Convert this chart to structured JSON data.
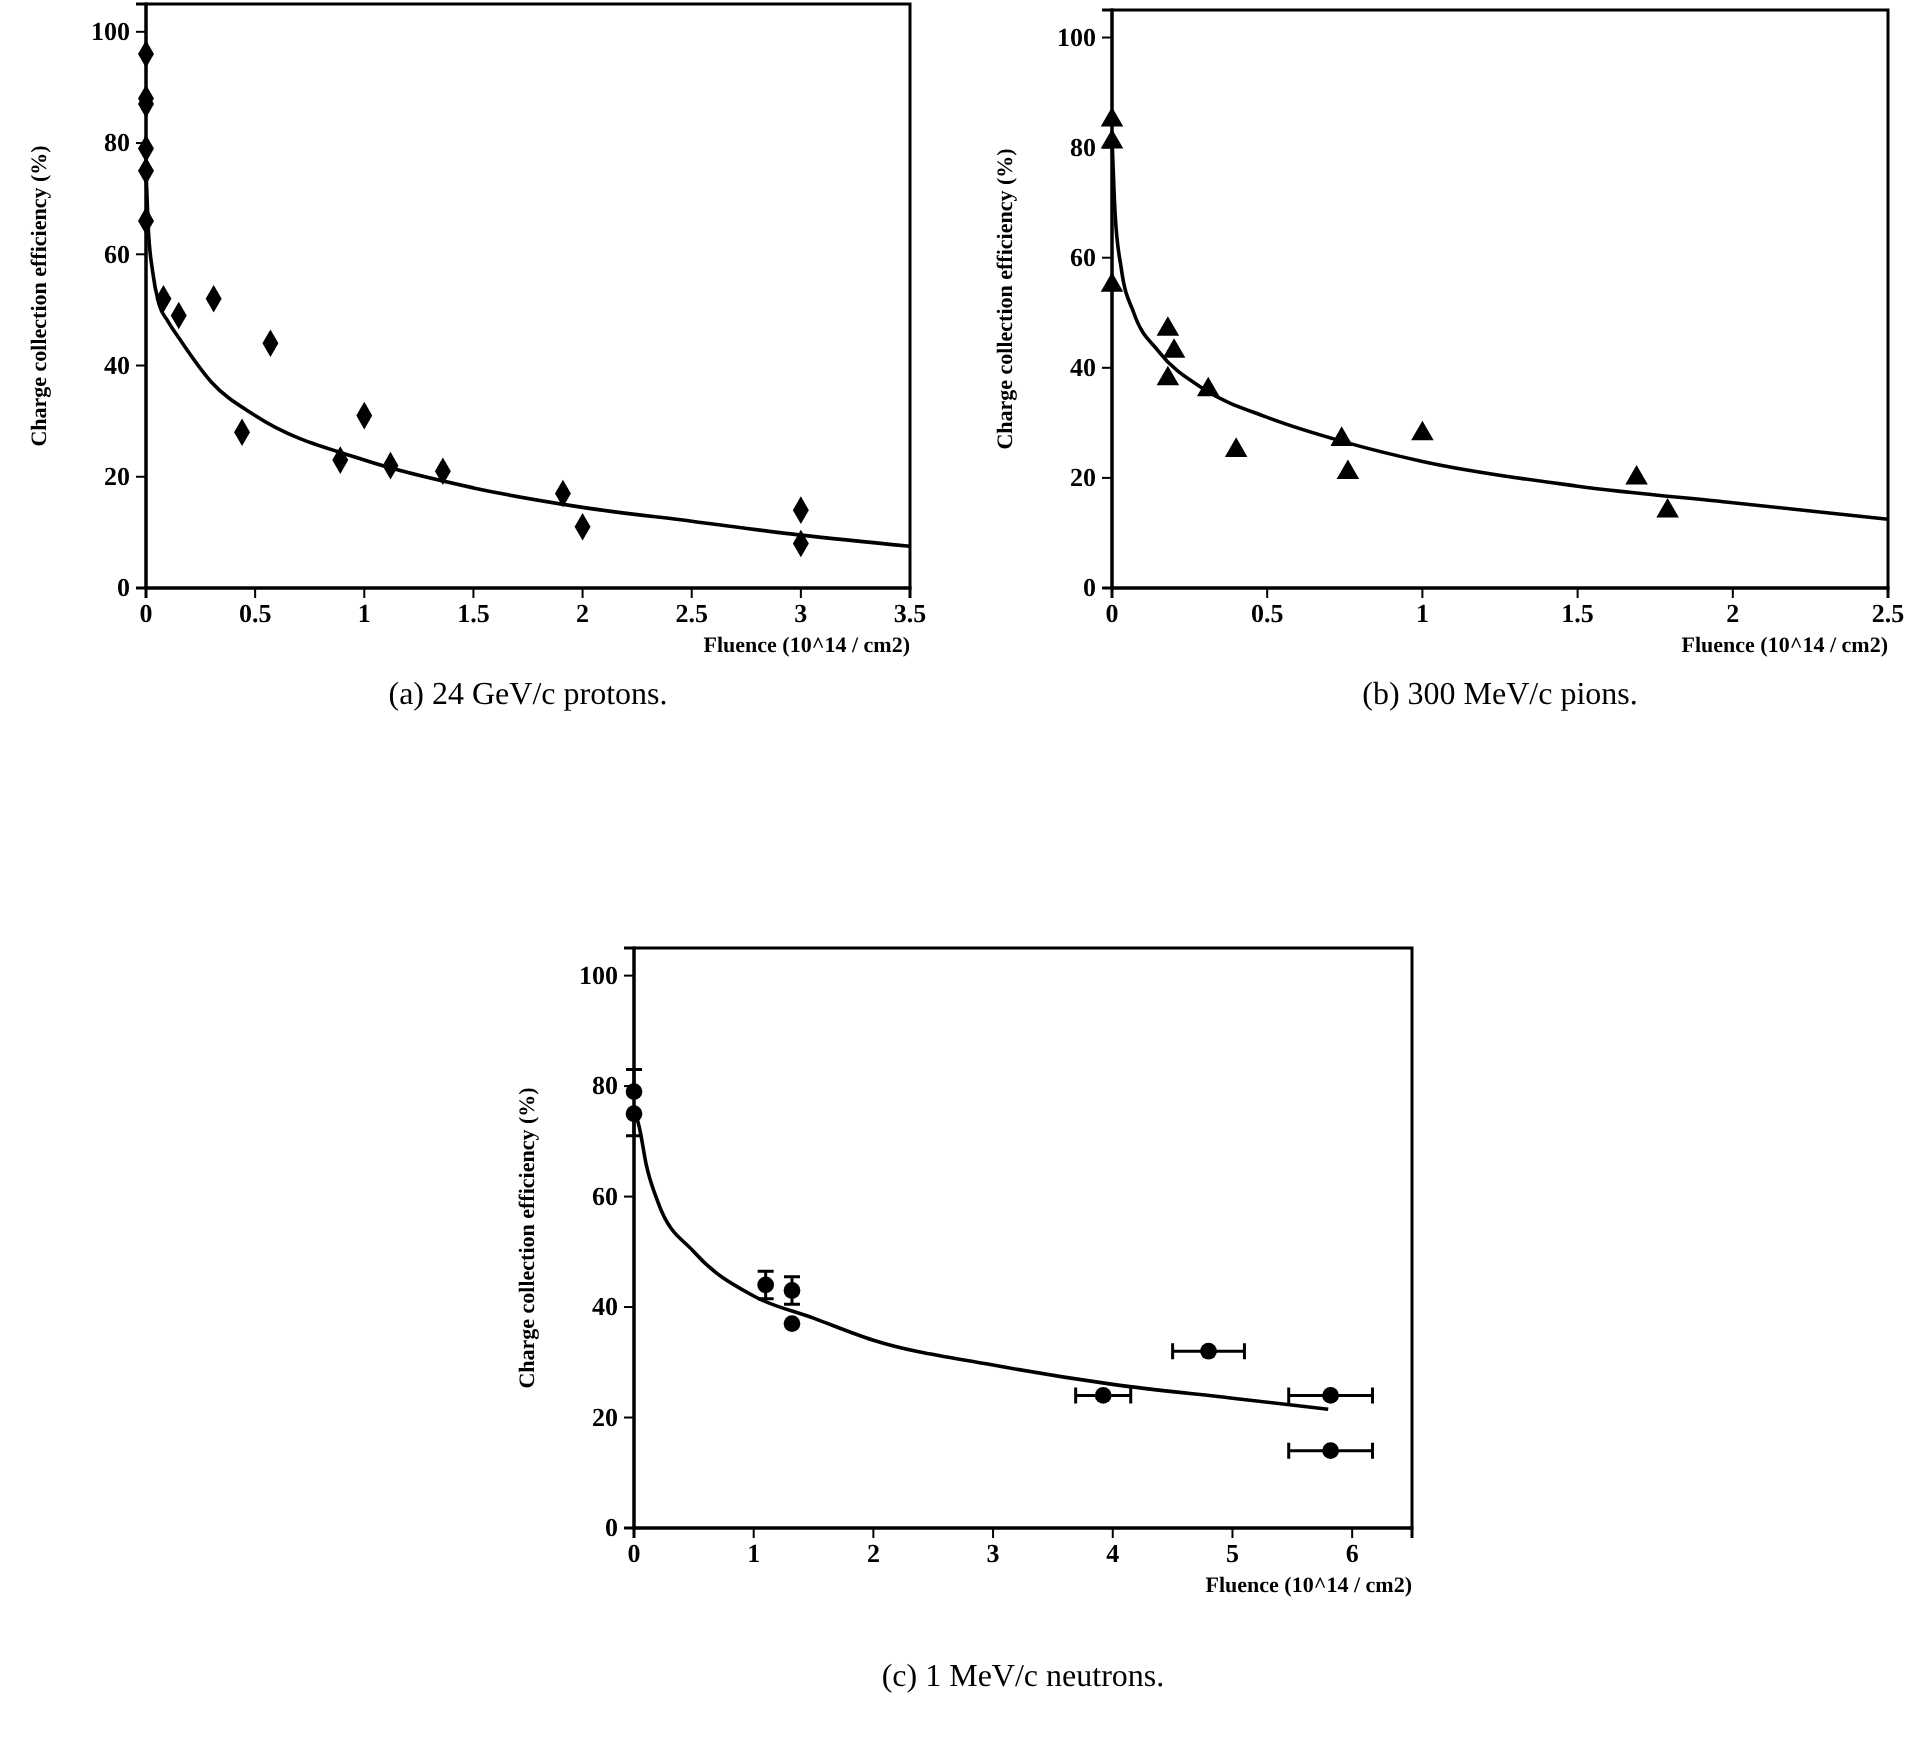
{
  "chart_data": [
    {
      "type": "scatter",
      "xlabel": "Fluence (10^14 / cm2)",
      "ylabel": "Charge collection efficiency (%)",
      "annotations": [
        "(a) 24 GeV/c protons."
      ],
      "xlim": [
        0,
        3.5
      ],
      "ylim": [
        0,
        105
      ],
      "xticks": [
        0,
        0.5,
        1,
        1.5,
        2,
        2.5,
        3,
        3.5
      ],
      "yticks": [
        0,
        20,
        40,
        60,
        80,
        100
      ],
      "grid": false,
      "series": [
        {
          "marker": "diamond",
          "color": "#000000",
          "x": [
            0,
            0,
            0,
            0,
            0,
            0,
            0.08,
            0.15,
            0.31,
            0.44,
            0.57,
            0.89,
            1.0,
            1.12,
            1.36,
            1.91,
            2.0,
            3.0,
            3.0
          ],
          "values": [
            96,
            88,
            87,
            79,
            75,
            66,
            52,
            49,
            52,
            28,
            44,
            23,
            31,
            22,
            21,
            17,
            11,
            14,
            8
          ]
        },
        {
          "type": "line",
          "marker": "none",
          "color": "#000000",
          "x": [
            0,
            0.01,
            0.03,
            0.06,
            0.1,
            0.15,
            0.3,
            0.5,
            1,
            1.5,
            2,
            2.5,
            3,
            3.5
          ],
          "values": [
            75,
            65,
            57,
            51,
            48,
            45,
            37,
            31,
            23,
            18,
            14.5,
            12,
            9.5,
            7.5
          ]
        }
      ]
    },
    {
      "type": "scatter",
      "xlabel": "Fluence (10^14 / cm2)",
      "ylabel": "Charge collection efficiency (%)",
      "annotations": [
        "(b) 300 MeV/c pions."
      ],
      "xlim": [
        0,
        2.5
      ],
      "ylim": [
        0,
        105
      ],
      "xticks": [
        0,
        0.5,
        1,
        1.5,
        2,
        2.5
      ],
      "yticks": [
        0,
        20,
        40,
        60,
        80,
        100
      ],
      "grid": false,
      "series": [
        {
          "marker": "triangle",
          "color": "#000000",
          "x": [
            0,
            0,
            0,
            0.18,
            0.2,
            0.18,
            0.31,
            0.4,
            0.74,
            0.76,
            1.0,
            1.69,
            1.79
          ],
          "values": [
            85,
            81,
            55,
            47,
            43,
            38,
            36,
            25,
            27,
            21,
            28,
            20,
            14
          ]
        },
        {
          "type": "line",
          "marker": "none",
          "color": "#000000",
          "x": [
            0,
            0.01,
            0.03,
            0.07,
            0.15,
            0.3,
            0.5,
            0.75,
            1,
            1.5,
            2,
            2.5
          ],
          "values": [
            82,
            68,
            58,
            50,
            43,
            36,
            31,
            26.5,
            23,
            18.5,
            15.5,
            12.5
          ]
        }
      ]
    },
    {
      "type": "scatter",
      "xlabel": "Fluence (10^14 / cm2)",
      "ylabel": "Charge collection efficiency (%)",
      "annotations": [
        "(c) 1 MeV/c neutrons."
      ],
      "xlim": [
        0,
        6.5
      ],
      "ylim": [
        0,
        105
      ],
      "xticks": [
        0,
        1,
        2,
        3,
        4,
        5,
        6
      ],
      "yticks": [
        0,
        20,
        40,
        60,
        80,
        100
      ],
      "grid": false,
      "series": [
        {
          "marker": "circle",
          "color": "#000000",
          "x": [
            0,
            0,
            1.1,
            1.32,
            1.32,
            3.92,
            4.8,
            5.82,
            5.82
          ],
          "values": [
            79,
            75,
            44,
            43,
            37,
            24,
            32,
            24,
            14
          ],
          "errors": [
            [
              79,
              83
            ],
            [
              71,
              75
            ],
            2.5,
            2.5,
            null,
            null,
            null,
            null,
            null
          ],
          "xerrors": [
            null,
            null,
            null,
            null,
            null,
            0.23,
            0.3,
            0.35,
            0.35
          ]
        },
        {
          "type": "line",
          "marker": "none",
          "color": "#000000",
          "x": [
            0,
            0.05,
            0.1,
            0.2,
            0.5,
            1,
            1.5,
            2,
            3,
            4,
            5,
            5.8
          ],
          "values": [
            76,
            72,
            66,
            59,
            50,
            42,
            38,
            34,
            29.5,
            26,
            23.5,
            21.5
          ]
        }
      ]
    }
  ]
}
